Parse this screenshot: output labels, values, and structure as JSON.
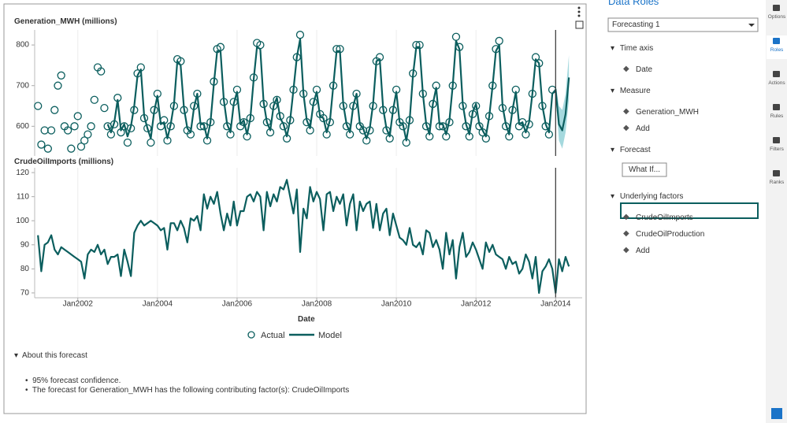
{
  "chart_data": [
    {
      "type": "line",
      "title": "Generation_MWH (millions)",
      "x": [
        "2001-01",
        "2001-02",
        "2001-03",
        "2001-04",
        "2001-05",
        "2001-06",
        "2001-07",
        "2001-08",
        "2001-09",
        "2001-10",
        "2001-11",
        "2001-12",
        "2002-01",
        "2002-02",
        "2002-03",
        "2002-04",
        "2002-05",
        "2002-06",
        "2002-07",
        "2002-08",
        "2002-09",
        "2002-10",
        "2002-11",
        "2002-12",
        "2003-01",
        "2003-02",
        "2003-03",
        "2003-04",
        "2003-05",
        "2003-06",
        "2003-07",
        "2003-08",
        "2003-09",
        "2003-10",
        "2003-11",
        "2003-12",
        "2004-01",
        "2004-02",
        "2004-03",
        "2004-04",
        "2004-05",
        "2004-06",
        "2004-07",
        "2004-08",
        "2004-09",
        "2004-10",
        "2004-11",
        "2004-12",
        "2005-01",
        "2005-02",
        "2005-03",
        "2005-04",
        "2005-05",
        "2005-06",
        "2005-07",
        "2005-08",
        "2005-09",
        "2005-10",
        "2005-11",
        "2005-12",
        "2006-01",
        "2006-02",
        "2006-03",
        "2006-04",
        "2006-05",
        "2006-06",
        "2006-07",
        "2006-08",
        "2006-09",
        "2006-10",
        "2006-11",
        "2006-12",
        "2007-01",
        "2007-02",
        "2007-03",
        "2007-04",
        "2007-05",
        "2007-06",
        "2007-07",
        "2007-08",
        "2007-09",
        "2007-10",
        "2007-11",
        "2007-12",
        "2008-01",
        "2008-02",
        "2008-03",
        "2008-04",
        "2008-05",
        "2008-06",
        "2008-07",
        "2008-08",
        "2008-09",
        "2008-10",
        "2008-11",
        "2008-12",
        "2009-01",
        "2009-02",
        "2009-03",
        "2009-04",
        "2009-05",
        "2009-06",
        "2009-07",
        "2009-08",
        "2009-09",
        "2009-10",
        "2009-11",
        "2009-12",
        "2010-01",
        "2010-02",
        "2010-03",
        "2010-04",
        "2010-05",
        "2010-06",
        "2010-07",
        "2010-08",
        "2010-09",
        "2010-10",
        "2010-11",
        "2010-12",
        "2011-01",
        "2011-02",
        "2011-03",
        "2011-04",
        "2011-05",
        "2011-06",
        "2011-07",
        "2011-08",
        "2011-09",
        "2011-10",
        "2011-11",
        "2011-12",
        "2012-01",
        "2012-02",
        "2012-03",
        "2012-04",
        "2012-05",
        "2012-06",
        "2012-07",
        "2012-08",
        "2012-09",
        "2012-10",
        "2012-11",
        "2012-12",
        "2013-01",
        "2013-02",
        "2013-03",
        "2013-04",
        "2013-05",
        "2013-06",
        "2013-07",
        "2013-08",
        "2013-09",
        "2013-10",
        "2013-11",
        "2013-12",
        "2014-01",
        "2014-02",
        "2014-03",
        "2014-04",
        "2014-05"
      ],
      "xlim": [
        "2000-12",
        "2014-09"
      ],
      "ylim": [
        527,
        837
      ],
      "yticks": [
        600,
        700,
        800
      ],
      "grid": true,
      "series": [
        {
          "name": "Actual",
          "color": "#0b5e5e",
          "marker": "circle",
          "values": [
            650,
            555,
            590,
            545,
            590,
            640,
            700,
            725,
            600,
            590,
            545,
            600,
            625,
            550,
            565,
            580,
            600,
            665,
            745,
            735,
            645,
            600,
            580,
            605,
            670,
            585,
            600,
            560,
            595,
            640,
            730,
            745,
            620,
            595,
            560,
            640,
            680,
            600,
            615,
            565,
            600,
            650,
            765,
            760,
            640,
            590,
            580,
            650,
            680,
            600,
            600,
            565,
            610,
            710,
            790,
            795,
            660,
            600,
            580,
            660,
            690,
            600,
            610,
            575,
            620,
            720,
            805,
            800,
            655,
            610,
            585,
            650,
            665,
            625,
            600,
            570,
            615,
            690,
            770,
            825,
            680,
            610,
            590,
            660,
            690,
            630,
            620,
            580,
            610,
            700,
            790,
            790,
            650,
            600,
            580,
            650,
            680,
            600,
            590,
            565,
            590,
            650,
            760,
            770,
            640,
            590,
            570,
            640,
            690,
            610,
            600,
            560,
            615,
            730,
            800,
            800,
            680,
            600,
            575,
            655,
            700,
            600,
            600,
            575,
            610,
            700,
            820,
            795,
            650,
            600,
            575,
            630,
            650,
            600,
            585,
            570,
            625,
            700,
            790,
            810,
            645,
            600,
            575,
            640,
            690,
            600,
            610,
            580,
            605,
            680,
            770,
            755,
            650,
            600,
            580,
            690,
            null,
            null,
            null,
            null,
            null
          ]
        },
        {
          "name": "Model",
          "color": "#0b5e5e",
          "marker": "line",
          "values": [
            null,
            null,
            null,
            null,
            null,
            null,
            null,
            null,
            null,
            null,
            null,
            null,
            null,
            null,
            null,
            null,
            null,
            null,
            null,
            null,
            null,
            605,
            585,
            610,
            665,
            590,
            605,
            575,
            600,
            650,
            725,
            740,
            625,
            595,
            570,
            635,
            675,
            605,
            610,
            570,
            605,
            655,
            760,
            750,
            645,
            595,
            585,
            645,
            680,
            605,
            605,
            570,
            610,
            705,
            785,
            785,
            665,
            605,
            585,
            655,
            685,
            605,
            615,
            580,
            620,
            715,
            795,
            790,
            660,
            610,
            590,
            650,
            670,
            620,
            605,
            575,
            615,
            690,
            770,
            815,
            680,
            615,
            595,
            655,
            685,
            625,
            620,
            585,
            615,
            700,
            785,
            785,
            655,
            605,
            585,
            650,
            680,
            605,
            595,
            570,
            595,
            655,
            760,
            765,
            645,
            595,
            575,
            640,
            685,
            610,
            605,
            565,
            615,
            725,
            795,
            795,
            680,
            605,
            580,
            655,
            695,
            605,
            605,
            580,
            615,
            700,
            810,
            790,
            655,
            605,
            580,
            635,
            655,
            605,
            590,
            575,
            625,
            700,
            785,
            800,
            650,
            605,
            580,
            640,
            685,
            605,
            610,
            585,
            610,
            680,
            765,
            755,
            650,
            605,
            585,
            680,
            690,
            605,
            590,
            630,
            720
          ]
        }
      ],
      "forecast_start": "2014-01",
      "band": {
        "color": "#8fd0d6",
        "x": [
          "2014-01",
          "2014-02",
          "2014-03",
          "2014-04",
          "2014-05"
        ],
        "lower": [
          675,
          565,
          545,
          585,
          665
        ],
        "upper": [
          705,
          650,
          640,
          680,
          775
        ]
      }
    },
    {
      "type": "line",
      "title": "CrudeOilImports (millions)",
      "x_label": "Date",
      "x": [
        "2001-01",
        "2001-02",
        "2001-03",
        "2001-04",
        "2001-05",
        "2001-06",
        "2001-07",
        "2001-08",
        "2001-09",
        "2001-10",
        "2001-11",
        "2001-12",
        "2002-01",
        "2002-02",
        "2002-03",
        "2002-04",
        "2002-05",
        "2002-06",
        "2002-07",
        "2002-08",
        "2002-09",
        "2002-10",
        "2002-11",
        "2002-12",
        "2003-01",
        "2003-02",
        "2003-03",
        "2003-04",
        "2003-05",
        "2003-06",
        "2003-07",
        "2003-08",
        "2003-09",
        "2003-10",
        "2003-11",
        "2003-12",
        "2004-01",
        "2004-02",
        "2004-03",
        "2004-04",
        "2004-05",
        "2004-06",
        "2004-07",
        "2004-08",
        "2004-09",
        "2004-10",
        "2004-11",
        "2004-12",
        "2005-01",
        "2005-02",
        "2005-03",
        "2005-04",
        "2005-05",
        "2005-06",
        "2005-07",
        "2005-08",
        "2005-09",
        "2005-10",
        "2005-11",
        "2005-12",
        "2006-01",
        "2006-02",
        "2006-03",
        "2006-04",
        "2006-05",
        "2006-06",
        "2006-07",
        "2006-08",
        "2006-09",
        "2006-10",
        "2006-11",
        "2006-12",
        "2007-01",
        "2007-02",
        "2007-03",
        "2007-04",
        "2007-05",
        "2007-06",
        "2007-07",
        "2007-08",
        "2007-09",
        "2007-10",
        "2007-11",
        "2007-12",
        "2008-01",
        "2008-02",
        "2008-03",
        "2008-04",
        "2008-05",
        "2008-06",
        "2008-07",
        "2008-08",
        "2008-09",
        "2008-10",
        "2008-11",
        "2008-12",
        "2009-01",
        "2009-02",
        "2009-03",
        "2009-04",
        "2009-05",
        "2009-06",
        "2009-07",
        "2009-08",
        "2009-09",
        "2009-10",
        "2009-11",
        "2009-12",
        "2010-01",
        "2010-02",
        "2010-03",
        "2010-04",
        "2010-05",
        "2010-06",
        "2010-07",
        "2010-08",
        "2010-09",
        "2010-10",
        "2010-11",
        "2010-12",
        "2011-01",
        "2011-02",
        "2011-03",
        "2011-04",
        "2011-05",
        "2011-06",
        "2011-07",
        "2011-08",
        "2011-09",
        "2011-10",
        "2011-11",
        "2011-12",
        "2012-01",
        "2012-02",
        "2012-03",
        "2012-04",
        "2012-05",
        "2012-06",
        "2012-07",
        "2012-08",
        "2012-09",
        "2012-10",
        "2012-11",
        "2012-12",
        "2013-01",
        "2013-02",
        "2013-03",
        "2013-04",
        "2013-05",
        "2013-06",
        "2013-07",
        "2013-08",
        "2013-09",
        "2013-10",
        "2013-11",
        "2013-12",
        "2014-01",
        "2014-02",
        "2014-03",
        "2014-04",
        "2014-05"
      ],
      "xlim": [
        "2000-12",
        "2014-09"
      ],
      "xticks": [
        {
          "value": "2002-01",
          "label": "Jan2002"
        },
        {
          "value": "2004-01",
          "label": "Jan2004"
        },
        {
          "value": "2006-01",
          "label": "Jan2006"
        },
        {
          "value": "2008-01",
          "label": "Jan2008"
        },
        {
          "value": "2010-01",
          "label": "Jan2010"
        },
        {
          "value": "2012-01",
          "label": "Jan2012"
        },
        {
          "value": "2014-01",
          "label": "Jan2014"
        }
      ],
      "ylim": [
        68,
        122
      ],
      "yticks": [
        70,
        80,
        90,
        100,
        110,
        120
      ],
      "grid": true,
      "series": [
        {
          "color": "#0b5e5e",
          "values": [
            94,
            79,
            90,
            91,
            94,
            88,
            86,
            89,
            88,
            87,
            86,
            85,
            84,
            83,
            76,
            86,
            88,
            87,
            90,
            86,
            88,
            82,
            85,
            85,
            86,
            77,
            88,
            83,
            77,
            95,
            98,
            100,
            98,
            99,
            100,
            99,
            98,
            96,
            97,
            88,
            99,
            99,
            96,
            100,
            97,
            91,
            101,
            100,
            102,
            96,
            111,
            105,
            110,
            107,
            112,
            103,
            96,
            103,
            98,
            108,
            98,
            104,
            104,
            110,
            111,
            108,
            112,
            110,
            96,
            112,
            106,
            111,
            108,
            114,
            113,
            117,
            110,
            103,
            113,
            87,
            105,
            101,
            114,
            108,
            112,
            109,
            96,
            111,
            112,
            104,
            110,
            107,
            111,
            98,
            107,
            111,
            96,
            108,
            104,
            107,
            108,
            97,
            107,
            96,
            103,
            105,
            94,
            103,
            98,
            93,
            92,
            90,
            97,
            90,
            89,
            91,
            86,
            96,
            95,
            89,
            92,
            88,
            80,
            95,
            86,
            92,
            76,
            89,
            95,
            85,
            87,
            91,
            88,
            84,
            80,
            91,
            87,
            90,
            86,
            85,
            84,
            80,
            85,
            82,
            83,
            78,
            80,
            86,
            83,
            76,
            85,
            70,
            79,
            81,
            84,
            80,
            70,
            84,
            79,
            85,
            81
          ]
        }
      ],
      "forecast_start": "2014-01"
    }
  ],
  "about": {
    "title": "About this forecast",
    "items": [
      "95% forecast confidence.",
      "The forecast for Generation_MWH has the following contributing factor(s): CrudeOilImports"
    ]
  },
  "roles": {
    "title": "Data Roles",
    "object": "Forecasting 1",
    "sections": [
      {
        "label": "Time axis",
        "items": [
          "Date"
        ]
      },
      {
        "label": "Measure",
        "items": [
          "Generation_MWH",
          "Add"
        ]
      },
      {
        "label": "Forecast",
        "button": "What If..."
      },
      {
        "label": "Underlying factors",
        "items": [
          "CrudeOilImports",
          "CrudeOilProduction",
          "Add"
        ]
      }
    ]
  },
  "sidebar": [
    "Options",
    "Roles",
    "Actions",
    "Rules",
    "Filters",
    "Ranks"
  ]
}
